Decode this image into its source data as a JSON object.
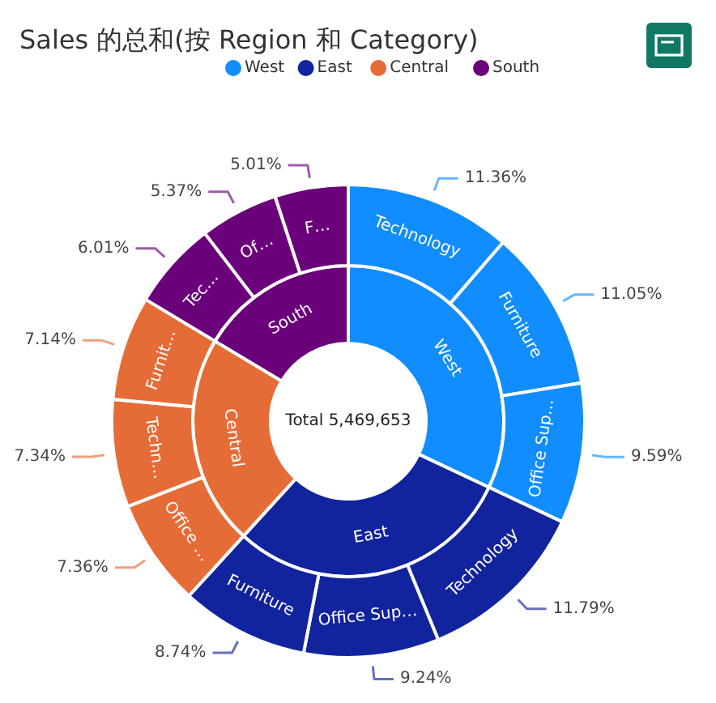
{
  "chart_data": [
    {
      "type": "donut",
      "title": "Sales 的总和(按 Region 和 Category)",
      "legend": "top",
      "annotations": [
        "Total 5,469,653"
      ],
      "categories": [
        "West",
        "East",
        "Central",
        "South"
      ],
      "values": [
        32.0,
        29.77,
        21.84,
        16.39
      ],
      "colors": [
        "#118dff",
        "#12239e",
        "#e66c37",
        "#6b007b"
      ]
    },
    {
      "type": "donut",
      "categories": [
        "Technology",
        "Furniture",
        "Office Sup…",
        "Technology",
        "Office Sup…",
        "Furniture",
        "Office …",
        "Techn…",
        "Furnit…",
        "Tec…",
        "Of…",
        "F…"
      ],
      "values": [
        11.36,
        11.05,
        9.59,
        11.79,
        9.24,
        8.74,
        7.36,
        7.34,
        7.14,
        6.01,
        5.37,
        5.01
      ],
      "colors": [
        "#118dff",
        "#118dff",
        "#118dff",
        "#12239e",
        "#12239e",
        "#12239e",
        "#e66c37",
        "#e66c37",
        "#e66c37",
        "#6b007b",
        "#6b007b",
        "#6b007b"
      ],
      "value_labels": [
        "11.36%",
        "11.05%",
        "9.59%",
        "11.79%",
        "9.24%",
        "8.74%",
        "7.36%",
        "7.34%",
        "7.14%",
        "6.01%",
        "5.37%",
        "5.01%"
      ]
    }
  ]
}
